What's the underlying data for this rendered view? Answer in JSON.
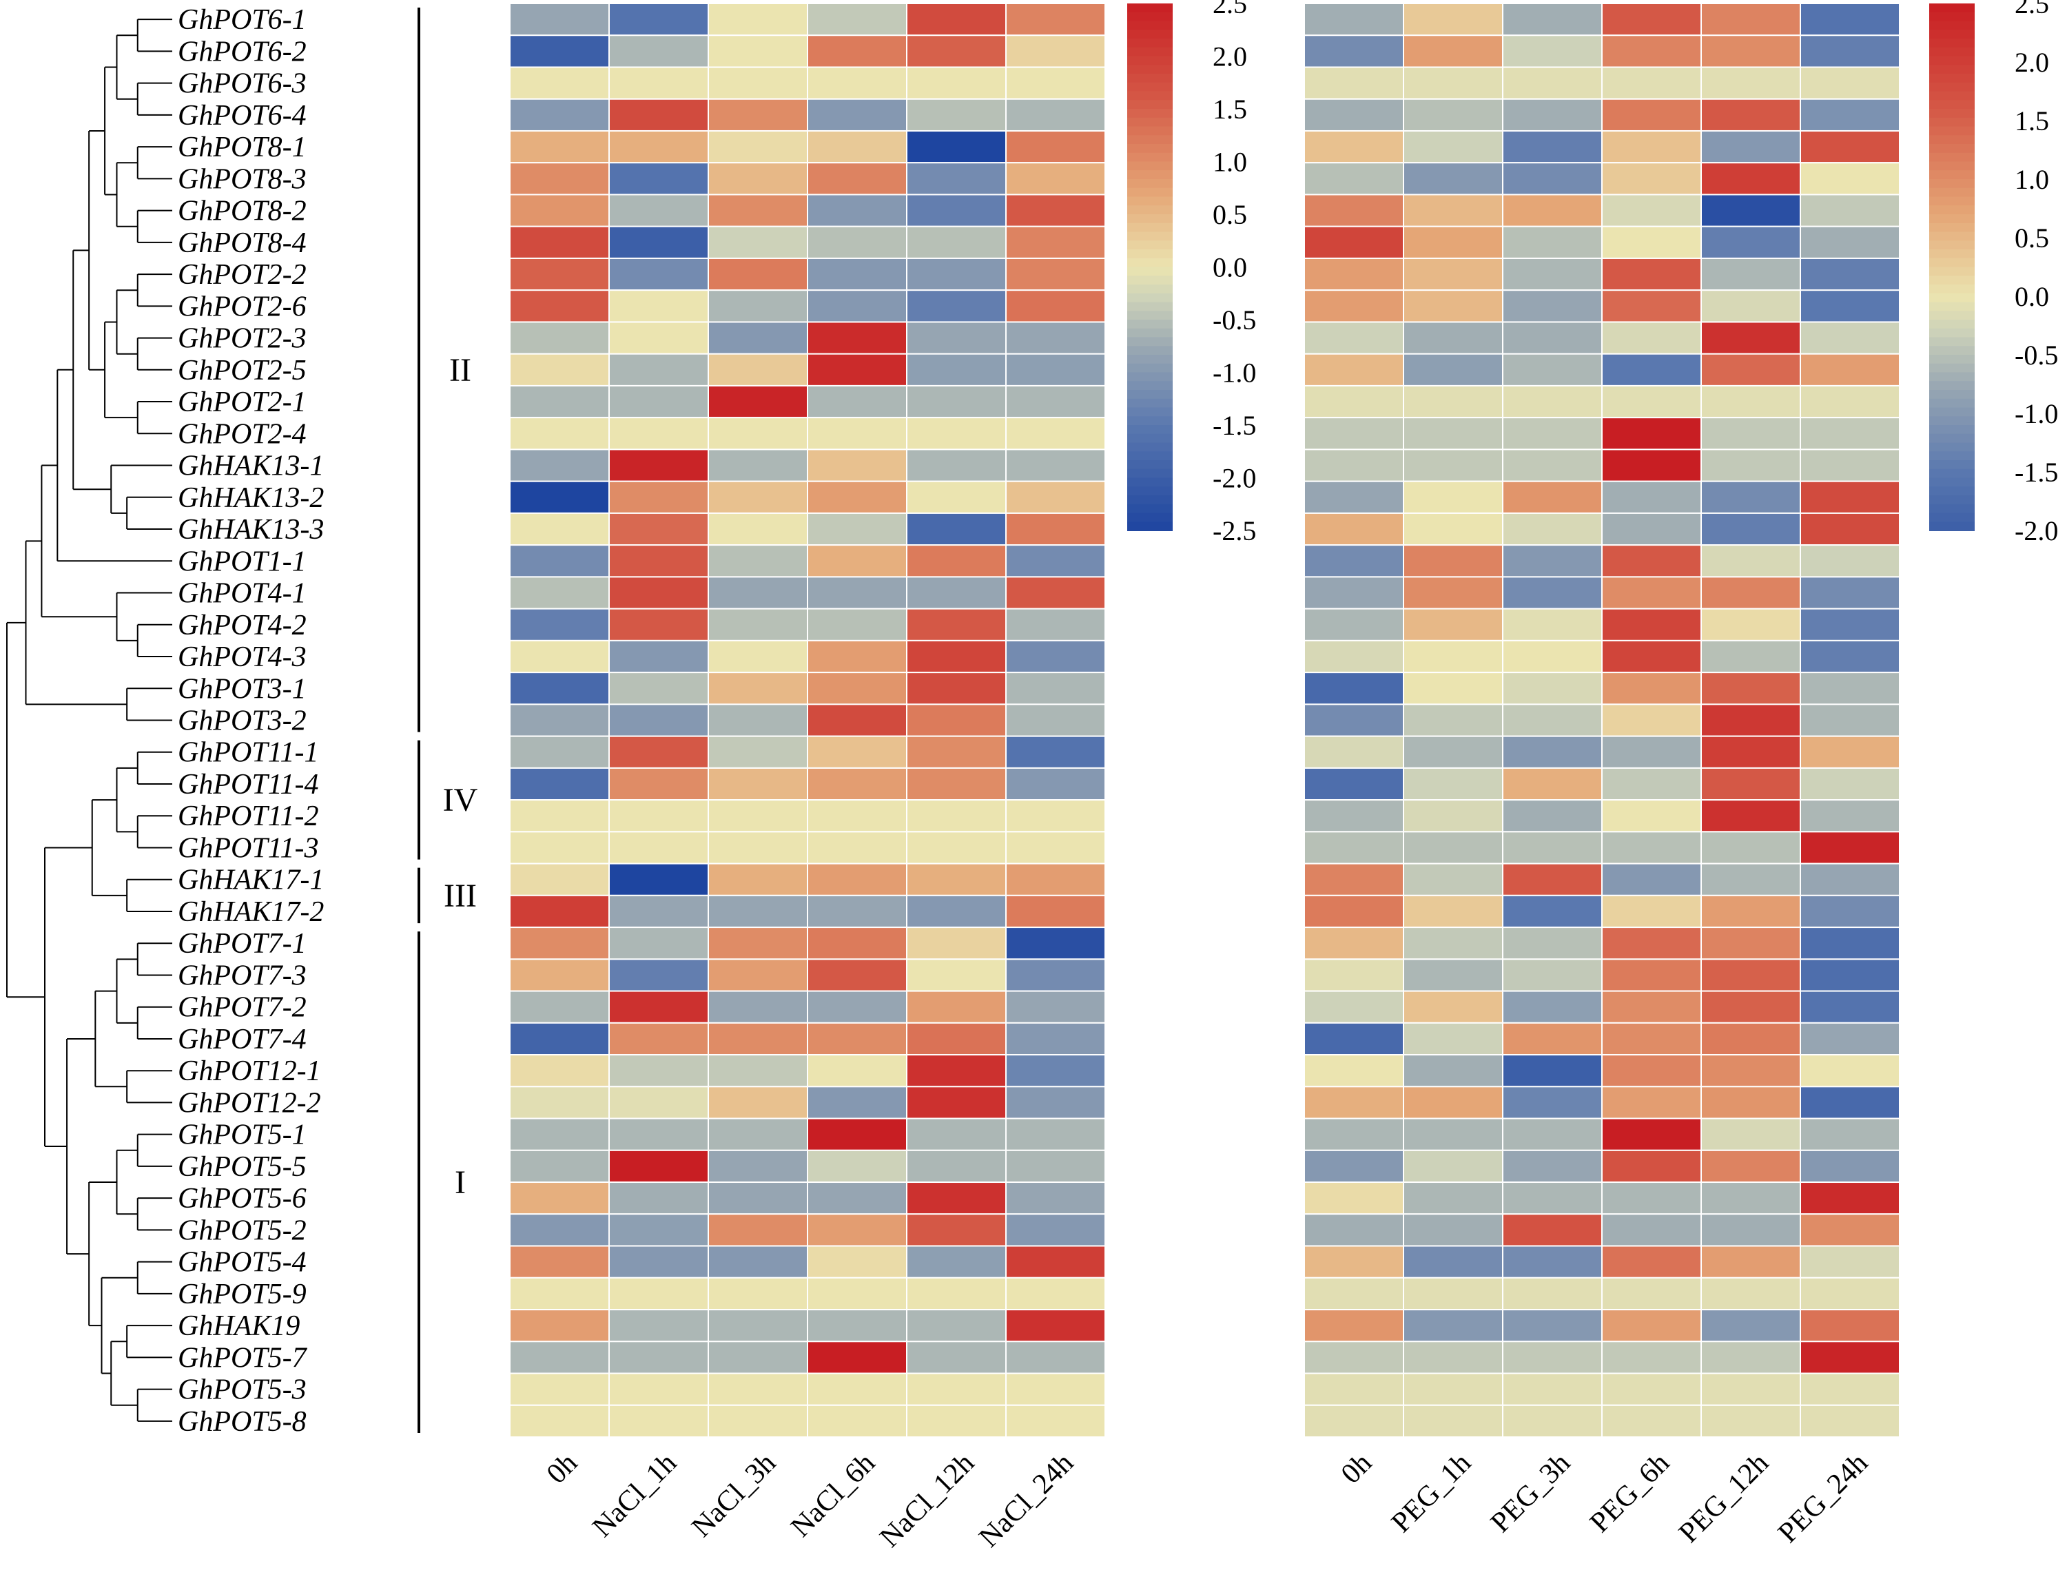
{
  "chart_data": {
    "type": "heatmap",
    "genes": [
      "GhPOT6-1",
      "GhPOT6-2",
      "GhPOT6-3",
      "GhPOT6-4",
      "GhPOT8-1",
      "GhPOT8-3",
      "GhPOT8-2",
      "GhPOT8-4",
      "GhPOT2-2",
      "GhPOT2-6",
      "GhPOT2-3",
      "GhPOT2-5",
      "GhPOT2-1",
      "GhPOT2-4",
      "GhHAK13-1",
      "GhHAK13-2",
      "GhHAK13-3",
      "GhPOT1-1",
      "GhPOT4-1",
      "GhPOT4-2",
      "GhPOT4-3",
      "GhPOT3-1",
      "GhPOT3-2",
      "GhPOT11-1",
      "GhPOT11-4",
      "GhPOT11-2",
      "GhPOT11-3",
      "GhHAK17-1",
      "GhHAK17-2",
      "GhPOT7-1",
      "GhPOT7-3",
      "GhPOT7-2",
      "GhPOT7-4",
      "GhPOT12-1",
      "GhPOT12-2",
      "GhPOT5-1",
      "GhPOT5-5",
      "GhPOT5-6",
      "GhPOT5-2",
      "GhPOT5-4",
      "GhPOT5-9",
      "GhHAK19",
      "GhPOT5-7",
      "GhPOT5-3",
      "GhPOT5-8"
    ],
    "groups": [
      {
        "label": "II",
        "from": 0,
        "to": 22
      },
      {
        "label": "IV",
        "from": 23,
        "to": 26
      },
      {
        "label": "III",
        "from": 27,
        "to": 28
      },
      {
        "label": "I",
        "from": 29,
        "to": 44
      }
    ],
    "tree_merges": [
      [
        0,
        1,
        0.33
      ],
      [
        2,
        3,
        0.33
      ],
      [
        45,
        46,
        0.66
      ],
      [
        4,
        5,
        0.33
      ],
      [
        6,
        7,
        0.33
      ],
      [
        48,
        49,
        0.66
      ],
      [
        47,
        50,
        0.85
      ],
      [
        8,
        9,
        0.33
      ],
      [
        10,
        11,
        0.33
      ],
      [
        52,
        53,
        0.66
      ],
      [
        12,
        13,
        0.33
      ],
      [
        54,
        55,
        0.85
      ],
      [
        51,
        56,
        1.1
      ],
      [
        15,
        16,
        0.5
      ],
      [
        14,
        58,
        0.75
      ],
      [
        57,
        59,
        1.35
      ],
      [
        60,
        17,
        1.6
      ],
      [
        19,
        20,
        0.33
      ],
      [
        18,
        62,
        0.66
      ],
      [
        61,
        63,
        1.85
      ],
      [
        21,
        22,
        0.5
      ],
      [
        64,
        65,
        2.1
      ],
      [
        23,
        24,
        0.33
      ],
      [
        25,
        26,
        0.33
      ],
      [
        67,
        68,
        0.66
      ],
      [
        27,
        28,
        0.5
      ],
      [
        69,
        70,
        1.05
      ],
      [
        29,
        30,
        0.33
      ],
      [
        31,
        32,
        0.33
      ],
      [
        72,
        73,
        0.66
      ],
      [
        33,
        34,
        0.5
      ],
      [
        74,
        75,
        1.0
      ],
      [
        35,
        36,
        0.33
      ],
      [
        37,
        38,
        0.33
      ],
      [
        77,
        78,
        0.66
      ],
      [
        39,
        40,
        0.33
      ],
      [
        41,
        42,
        0.5
      ],
      [
        43,
        44,
        0.33
      ],
      [
        81,
        82,
        0.75
      ],
      [
        80,
        83,
        0.9
      ],
      [
        79,
        84,
        1.1
      ],
      [
        76,
        85,
        1.45
      ],
      [
        71,
        86,
        1.8
      ],
      [
        66,
        87,
        2.4
      ]
    ],
    "heatmaps": [
      {
        "name": "NaCl",
        "columns": [
          "0h",
          "NaCl_1h",
          "NaCl_3h",
          "NaCl_6h",
          "NaCl_12h",
          "NaCl_24h"
        ],
        "colorbar_ticks": [
          "2.5",
          "2.0",
          "1.5",
          "1.0",
          "0.5",
          "0.0",
          "-0.5",
          "-1.0",
          "-1.5",
          "-2.0",
          "-2.5"
        ],
        "range": [
          -2.5,
          2.5
        ],
        "values": [
          [
            -0.8,
            -1.6,
            0,
            -0.4,
            1.8,
            1.1
          ],
          [
            -2.0,
            -0.6,
            0,
            1.2,
            1.5,
            0.2
          ],
          [
            0,
            0,
            0,
            0,
            0,
            0
          ],
          [
            -1.0,
            1.8,
            1.0,
            -1.0,
            -0.5,
            -0.6
          ],
          [
            0.6,
            0.6,
            0.1,
            0.3,
            -2.5,
            1.2
          ],
          [
            1.0,
            -1.6,
            0.5,
            1.1,
            -1.2,
            0.6
          ],
          [
            0.9,
            -0.6,
            1.0,
            -1.0,
            -1.4,
            1.6
          ],
          [
            1.8,
            -2.0,
            -0.3,
            -0.5,
            -0.5,
            1.1
          ],
          [
            1.5,
            -1.2,
            1.2,
            -1.0,
            -1.0,
            1.1
          ],
          [
            1.6,
            0,
            -0.6,
            -1.0,
            -1.4,
            1.3
          ],
          [
            -0.5,
            0,
            -1.0,
            2.3,
            -0.8,
            -0.8
          ],
          [
            0.1,
            -0.6,
            0.3,
            2.3,
            -0.9,
            -0.9
          ],
          [
            -0.6,
            -0.6,
            2.4,
            -0.6,
            -0.6,
            -0.6
          ],
          [
            0,
            0,
            0,
            0,
            0,
            0
          ],
          [
            -0.8,
            2.4,
            -0.6,
            0.4,
            -0.6,
            -0.6
          ],
          [
            -2.5,
            1.0,
            0.4,
            0.8,
            0,
            0.4
          ],
          [
            0,
            1.4,
            0,
            -0.4,
            -1.8,
            1.2
          ],
          [
            -1.2,
            1.6,
            -0.5,
            0.6,
            1.2,
            -1.2
          ],
          [
            -0.5,
            1.8,
            -0.8,
            -0.8,
            -0.8,
            1.6
          ],
          [
            -1.4,
            1.6,
            -0.5,
            -0.5,
            1.6,
            -0.6
          ],
          [
            0,
            -1.0,
            0,
            0.8,
            1.9,
            -1.2
          ],
          [
            -1.8,
            -0.5,
            0.5,
            0.9,
            1.8,
            -0.6
          ],
          [
            -0.8,
            -1.0,
            -0.6,
            1.8,
            1.2,
            -0.6
          ],
          [
            -0.6,
            1.6,
            -0.4,
            0.4,
            1.0,
            -1.6
          ],
          [
            -1.7,
            1.0,
            0.5,
            0.8,
            1.0,
            -1.0
          ],
          [
            0,
            0,
            0,
            0,
            0,
            0
          ],
          [
            0,
            0,
            0,
            0,
            0,
            0
          ],
          [
            0.1,
            -2.5,
            0.6,
            0.8,
            0.6,
            0.8
          ],
          [
            2.0,
            -0.8,
            -0.8,
            -0.8,
            -1.0,
            1.2
          ],
          [
            1.0,
            -0.6,
            1.0,
            1.2,
            0.2,
            -2.3
          ],
          [
            0.6,
            -1.4,
            0.8,
            1.6,
            0,
            -1.2
          ],
          [
            -0.6,
            2.2,
            -0.8,
            -0.8,
            0.8,
            -0.8
          ],
          [
            -1.9,
            1.0,
            1.0,
            1.0,
            1.3,
            -1.0
          ],
          [
            0.1,
            -0.4,
            -0.4,
            0,
            2.2,
            -1.3
          ],
          [
            -0.1,
            -0.1,
            0.4,
            -1.0,
            2.2,
            -1.0
          ],
          [
            -0.6,
            -0.6,
            -0.6,
            2.5,
            -0.6,
            -0.6
          ],
          [
            -0.6,
            2.5,
            -0.8,
            -0.3,
            -0.6,
            -0.6
          ],
          [
            0.6,
            -0.7,
            -0.8,
            -0.8,
            2.2,
            -0.8
          ],
          [
            -1.0,
            -0.9,
            1.0,
            0.8,
            1.6,
            -1.0
          ],
          [
            1.0,
            -1.0,
            -1.0,
            0.1,
            -0.9,
            2.0
          ],
          [
            0,
            0,
            0,
            0,
            0,
            0
          ],
          [
            0.8,
            -0.6,
            -0.6,
            -0.6,
            -0.6,
            2.2
          ],
          [
            -0.6,
            -0.6,
            -0.6,
            2.5,
            -0.6,
            -0.6
          ],
          [
            0,
            0,
            0,
            0,
            0,
            0
          ],
          [
            0,
            0,
            0,
            0,
            0,
            0
          ]
        ]
      },
      {
        "name": "PEG",
        "columns": [
          "0h",
          "PEG_1h",
          "PEG_3h",
          "PEG_6h",
          "PEG_12h",
          "PEG_24h"
        ],
        "colorbar_ticks": [
          "2.5",
          "2.0",
          "1.5",
          "1.0",
          "0.5",
          "0.0",
          "-0.5",
          "-1.0",
          "-1.5",
          "-2.0"
        ],
        "range": [
          -2.0,
          2.5
        ],
        "values": [
          [
            -0.7,
            0.3,
            -0.7,
            1.6,
            1.1,
            -1.6
          ],
          [
            -1.2,
            0.8,
            -0.3,
            1.1,
            1.0,
            -1.4
          ],
          [
            -0.1,
            -0.1,
            -0.1,
            -0.1,
            -0.1,
            -0.1
          ],
          [
            -0.7,
            -0.5,
            -0.7,
            1.2,
            1.6,
            -1.1
          ],
          [
            0.4,
            -0.3,
            -1.4,
            0.4,
            -1.0,
            1.7
          ],
          [
            -0.5,
            -1.0,
            -1.2,
            0.3,
            2.0,
            0
          ],
          [
            1.1,
            0.5,
            0.7,
            -0.2,
            -2.3,
            -0.4
          ],
          [
            1.9,
            0.7,
            -0.5,
            0,
            -1.4,
            -0.7
          ],
          [
            0.8,
            0.5,
            -0.6,
            1.6,
            -0.6,
            -1.4
          ],
          [
            0.8,
            0.5,
            -0.8,
            1.4,
            -0.2,
            -1.5
          ],
          [
            -0.3,
            -0.7,
            -0.7,
            -0.2,
            2.2,
            -0.3
          ],
          [
            0.5,
            -0.9,
            -0.6,
            -1.5,
            1.4,
            0.8
          ],
          [
            -0.1,
            -0.1,
            -0.1,
            -0.1,
            -0.1,
            -0.1
          ],
          [
            -0.4,
            -0.4,
            -0.4,
            2.5,
            -0.4,
            -0.4
          ],
          [
            -0.4,
            -0.4,
            -0.4,
            2.5,
            -0.4,
            -0.4
          ],
          [
            -0.8,
            0,
            0.9,
            -0.7,
            -1.2,
            1.8
          ],
          [
            0.6,
            0,
            -0.2,
            -0.7,
            -1.4,
            1.8
          ],
          [
            -1.2,
            1.1,
            -1.0,
            1.6,
            -0.2,
            -0.3
          ],
          [
            -0.8,
            1.0,
            -1.2,
            1.0,
            1.1,
            -1.2
          ],
          [
            -0.6,
            0.5,
            -0.1,
            1.9,
            0.1,
            -1.4
          ],
          [
            -0.2,
            0,
            0,
            1.9,
            -0.5,
            -1.4
          ],
          [
            -1.8,
            0,
            -0.2,
            0.9,
            1.5,
            -0.6
          ],
          [
            -1.2,
            -0.4,
            -0.4,
            0.2,
            2.1,
            -0.6
          ],
          [
            -0.2,
            -0.6,
            -1.0,
            -0.7,
            2.0,
            0.6
          ],
          [
            -1.7,
            -0.3,
            0.6,
            -0.4,
            1.6,
            -0.3
          ],
          [
            -0.6,
            -0.2,
            -0.7,
            0,
            2.2,
            -0.6
          ],
          [
            -0.5,
            -0.5,
            -0.5,
            -0.5,
            -0.5,
            2.4
          ],
          [
            1.1,
            -0.4,
            1.6,
            -1.0,
            -0.6,
            -0.8
          ],
          [
            1.2,
            0.3,
            -1.5,
            0.2,
            0.8,
            -1.2
          ],
          [
            0.5,
            -0.4,
            -0.5,
            1.4,
            1.1,
            -1.7
          ],
          [
            -0.1,
            -0.6,
            -0.4,
            1.2,
            1.5,
            -1.7
          ],
          [
            -0.3,
            0.4,
            -0.9,
            1.0,
            1.5,
            -1.6
          ],
          [
            -1.8,
            -0.3,
            0.9,
            1.0,
            1.2,
            -0.8
          ],
          [
            0,
            -0.7,
            -2.0,
            1.1,
            1.0,
            0
          ],
          [
            0.6,
            0.7,
            -1.3,
            0.8,
            0.9,
            -1.8
          ],
          [
            -0.6,
            -0.6,
            -0.6,
            2.5,
            -0.2,
            -0.6
          ],
          [
            -1.0,
            -0.3,
            -0.8,
            1.7,
            1.1,
            -1.0
          ],
          [
            0.1,
            -0.6,
            -0.6,
            -0.6,
            -0.6,
            2.3
          ],
          [
            -0.7,
            -0.7,
            1.7,
            -0.7,
            -0.7,
            1.0
          ],
          [
            0.5,
            -1.2,
            -1.2,
            1.3,
            0.8,
            -0.2
          ],
          [
            -0.1,
            -0.1,
            -0.1,
            -0.1,
            -0.1,
            -0.1
          ],
          [
            0.9,
            -1.0,
            -1.0,
            0.8,
            -1.0,
            1.3
          ],
          [
            -0.4,
            -0.4,
            -0.4,
            -0.4,
            -0.4,
            2.4
          ],
          [
            -0.1,
            -0.1,
            -0.1,
            -0.1,
            -0.1,
            -0.1
          ],
          [
            -0.1,
            -0.1,
            -0.1,
            -0.1,
            -0.1,
            -0.1
          ]
        ]
      }
    ]
  }
}
